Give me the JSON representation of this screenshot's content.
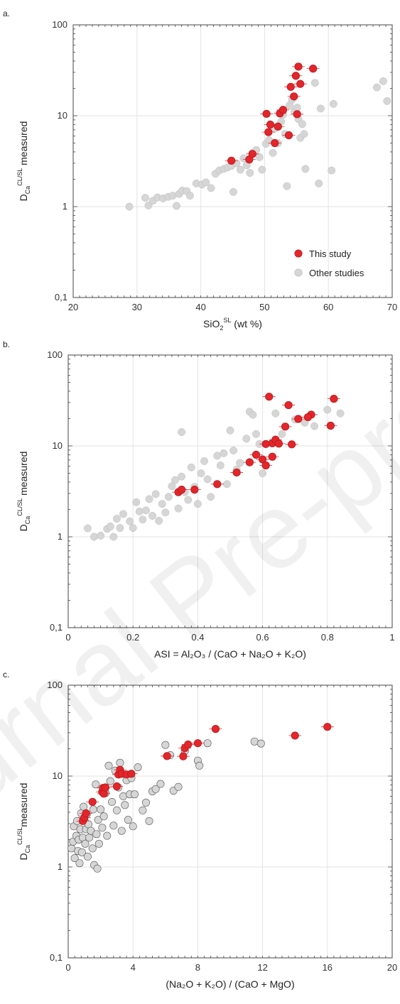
{
  "watermark": "Journal Pre-proof",
  "chart_data": [
    {
      "panel_label": "a.",
      "type": "scatter",
      "xlabel_main": "SiO",
      "xlabel_sub": "2",
      "xlabel_sup": "SL",
      "xlabel_tail": " (wt %)",
      "ylabel_main": "D",
      "ylabel_sub": "Ca",
      "ylabel_sup": "CL/SL",
      "ylabel_tail": " measured",
      "xlim": [
        20,
        70
      ],
      "ylim": [
        0.1,
        100
      ],
      "yscale": "log",
      "xticks": [
        20,
        30,
        40,
        50,
        60,
        70
      ],
      "xtick_labels": [
        "20",
        "30",
        "40",
        "50",
        "60",
        "70"
      ],
      "yticks": [
        0.1,
        1,
        10,
        100
      ],
      "ytick_labels": [
        "0,1",
        "1",
        "10",
        "100"
      ],
      "legend": [
        "This study",
        "Other studies"
      ],
      "series": [
        {
          "name": "Other studies",
          "color": "#d6d6d6",
          "points": [
            [
              28.8,
              1.0
            ],
            [
              31.3,
              1.25
            ],
            [
              31.8,
              1.03
            ],
            [
              32.5,
              1.16
            ],
            [
              33.2,
              1.26
            ],
            [
              34.1,
              1.23
            ],
            [
              34.9,
              1.28
            ],
            [
              35.6,
              1.32
            ],
            [
              36.2,
              1.02
            ],
            [
              36.6,
              1.38
            ],
            [
              37.1,
              1.5
            ],
            [
              37.8,
              1.48
            ],
            [
              38.3,
              1.32
            ],
            [
              39.3,
              1.8
            ],
            [
              40.2,
              1.75
            ],
            [
              40.8,
              1.85
            ],
            [
              41.6,
              1.6
            ],
            [
              42.3,
              2.3
            ],
            [
              42.9,
              2.5
            ],
            [
              43.6,
              2.6
            ],
            [
              44.2,
              2.7
            ],
            [
              44.8,
              2.8
            ],
            [
              45.1,
              1.45
            ],
            [
              45.6,
              3.0
            ],
            [
              46.2,
              2.55
            ],
            [
              46.7,
              3.4
            ],
            [
              47.2,
              2.85
            ],
            [
              47.7,
              2.35
            ],
            [
              48.1,
              3.9
            ],
            [
              48.7,
              4.2
            ],
            [
              49.2,
              3.5
            ],
            [
              49.6,
              2.55
            ],
            [
              50.2,
              4.9
            ],
            [
              50.7,
              5.4
            ],
            [
              51.3,
              3.9
            ],
            [
              51.6,
              7.2
            ],
            [
              52.1,
              5.0
            ],
            [
              52.6,
              8.6
            ],
            [
              52.9,
              10.3
            ],
            [
              53.2,
              6.3
            ],
            [
              53.5,
              1.68
            ],
            [
              53.9,
              13.0
            ],
            [
              54.3,
              15.0
            ],
            [
              54.7,
              11.2
            ],
            [
              55.1,
              12.3
            ],
            [
              55.3,
              9.2
            ],
            [
              55.6,
              5.7
            ],
            [
              55.9,
              8.1
            ],
            [
              56.2,
              6.3
            ],
            [
              56.4,
              2.6
            ],
            [
              57.9,
              23.0
            ],
            [
              58.5,
              1.8
            ],
            [
              58.8,
              12.0
            ],
            [
              60.5,
              2.5
            ],
            [
              60.8,
              13.5
            ],
            [
              67.6,
              20.5
            ],
            [
              68.6,
              24.0
            ],
            [
              69.2,
              14.5
            ]
          ]
        },
        {
          "name": "This study",
          "color": "#e3262b",
          "points": [
            [
              44.8,
              3.2
            ],
            [
              47.6,
              3.3
            ],
            [
              48.1,
              3.8
            ],
            [
              50.3,
              10.5
            ],
            [
              50.6,
              6.6
            ],
            [
              50.9,
              8.0
            ],
            [
              51.6,
              5.0
            ],
            [
              52.1,
              7.6
            ],
            [
              52.4,
              10.6
            ],
            [
              52.9,
              11.6
            ],
            [
              53.8,
              6.1
            ],
            [
              54.1,
              20.8
            ],
            [
              54.6,
              16.3
            ],
            [
              54.9,
              27.5
            ],
            [
              55.1,
              10.4
            ],
            [
              55.3,
              34.7
            ],
            [
              55.6,
              22.4
            ],
            [
              57.6,
              33.0
            ]
          ]
        }
      ]
    },
    {
      "panel_label": "b.",
      "type": "scatter",
      "xlabel_main": "ASI = Al₂O₃ / (CaO + Na₂O + K₂O)",
      "xlabel_sub": "",
      "xlabel_sup": "",
      "xlabel_tail": "",
      "ylabel_main": "D",
      "ylabel_sub": "Ca",
      "ylabel_sup": "CL/SL",
      "ylabel_tail": " measured",
      "xlim": [
        0,
        1
      ],
      "ylim": [
        0.1,
        100
      ],
      "yscale": "log",
      "xticks": [
        0,
        0.2,
        0.4,
        0.6,
        0.8,
        1
      ],
      "xtick_labels": [
        "0",
        "0.2",
        "0.4",
        "0.6",
        "0.8",
        "1"
      ],
      "yticks": [
        0.1,
        1,
        10,
        100
      ],
      "ytick_labels": [
        "0,1",
        "1",
        "10",
        "100"
      ],
      "legend": [],
      "series": [
        {
          "name": "Other studies",
          "color": "#d6d6d6",
          "points": [
            [
              0.06,
              1.24
            ],
            [
              0.08,
              1.0
            ],
            [
              0.1,
              1.03
            ],
            [
              0.12,
              1.22
            ],
            [
              0.13,
              1.3
            ],
            [
              0.14,
              1.0
            ],
            [
              0.15,
              1.58
            ],
            [
              0.16,
              1.25
            ],
            [
              0.17,
              1.78
            ],
            [
              0.19,
              1.48
            ],
            [
              0.2,
              1.25
            ],
            [
              0.21,
              2.4
            ],
            [
              0.22,
              1.9
            ],
            [
              0.23,
              1.55
            ],
            [
              0.24,
              1.95
            ],
            [
              0.25,
              2.6
            ],
            [
              0.26,
              1.7
            ],
            [
              0.27,
              2.95
            ],
            [
              0.28,
              1.5
            ],
            [
              0.29,
              2.3
            ],
            [
              0.3,
              1.85
            ],
            [
              0.31,
              2.75
            ],
            [
              0.32,
              3.6
            ],
            [
              0.33,
              4.2
            ],
            [
              0.34,
              2.05
            ],
            [
              0.35,
              4.6
            ],
            [
              0.35,
              14.2
            ],
            [
              0.36,
              3.1
            ],
            [
              0.37,
              2.55
            ],
            [
              0.38,
              5.8
            ],
            [
              0.39,
              3.55
            ],
            [
              0.4,
              2.3
            ],
            [
              0.41,
              5.0
            ],
            [
              0.42,
              6.8
            ],
            [
              0.43,
              4.3
            ],
            [
              0.44,
              2.75
            ],
            [
              0.46,
              7.8
            ],
            [
              0.47,
              6.1
            ],
            [
              0.48,
              8.3
            ],
            [
              0.49,
              3.8
            ],
            [
              0.5,
              14.8
            ],
            [
              0.51,
              8.9
            ],
            [
              0.52,
              5.5
            ],
            [
              0.53,
              6.5
            ],
            [
              0.55,
              12.0
            ],
            [
              0.56,
              23.8
            ],
            [
              0.57,
              22.0
            ],
            [
              0.58,
              13.5
            ],
            [
              0.59,
              10.5
            ],
            [
              0.6,
              5.0
            ],
            [
              0.64,
              22.8
            ],
            [
              0.66,
              13.5
            ],
            [
              0.7,
              19.5
            ],
            [
              0.73,
              18.0
            ],
            [
              0.76,
              16.5
            ],
            [
              0.8,
              25.0
            ],
            [
              0.84,
              22.8
            ]
          ]
        },
        {
          "name": "This study",
          "color": "#e3262b",
          "points": [
            [
              0.34,
              3.1
            ],
            [
              0.35,
              3.3
            ],
            [
              0.39,
              3.3
            ],
            [
              0.46,
              3.8
            ],
            [
              0.52,
              5.1
            ],
            [
              0.56,
              6.6
            ],
            [
              0.58,
              8.0
            ],
            [
              0.6,
              7.1
            ],
            [
              0.61,
              6.1
            ],
            [
              0.61,
              10.5
            ],
            [
              0.63,
              10.7
            ],
            [
              0.63,
              7.6
            ],
            [
              0.64,
              11.7
            ],
            [
              0.65,
              10.6
            ],
            [
              0.67,
              16.3
            ],
            [
              0.68,
              28.1
            ],
            [
              0.69,
              10.4
            ],
            [
              0.71,
              19.8
            ],
            [
              0.75,
              22.1
            ],
            [
              0.81,
              16.7
            ],
            [
              0.82,
              33.0
            ],
            [
              0.62,
              34.8
            ],
            [
              0.74,
              20.7
            ]
          ]
        }
      ]
    },
    {
      "panel_label": "c.",
      "type": "scatter",
      "xlabel_main": "(Na₂O + K₂O) / (CaO + MgO)",
      "xlabel_sub": "",
      "xlabel_sup": "",
      "xlabel_tail": "",
      "ylabel_main": "D",
      "ylabel_sub": "Ca",
      "ylabel_sup": "CL/SL",
      "ylabel_tail": "measured",
      "xlim": [
        0,
        20
      ],
      "ylim": [
        0.1,
        100
      ],
      "yscale": "log",
      "xticks": [
        0,
        4,
        8,
        12,
        16,
        20
      ],
      "xtick_labels": [
        "0",
        "4",
        "8",
        "12",
        "16",
        "20"
      ],
      "yticks": [
        0.1,
        1,
        10,
        100
      ],
      "ytick_labels": [
        "0,1",
        "1",
        "10",
        "100"
      ],
      "legend": [],
      "series": [
        {
          "name": "Other studies",
          "color": "#d6d6d6",
          "points": [
            [
              0.2,
              1.6
            ],
            [
              0.3,
              1.9
            ],
            [
              0.35,
              2.8
            ],
            [
              0.4,
              1.25
            ],
            [
              0.5,
              2.2
            ],
            [
              0.55,
              3.2
            ],
            [
              0.6,
              1.5
            ],
            [
              0.65,
              2.0
            ],
            [
              0.7,
              1.1
            ],
            [
              0.75,
              2.6
            ],
            [
              0.8,
              3.9
            ],
            [
              0.85,
              1.45
            ],
            [
              0.9,
              2.1
            ],
            [
              0.95,
              4.6
            ],
            [
              1.0,
              3.3
            ],
            [
              1.05,
              1.8
            ],
            [
              1.1,
              2.6
            ],
            [
              1.15,
              3.8
            ],
            [
              1.2,
              1.3
            ],
            [
              1.25,
              2.95
            ],
            [
              1.3,
              2.1
            ],
            [
              1.4,
              2.5
            ],
            [
              1.5,
              1.6
            ],
            [
              1.55,
              4.3
            ],
            [
              1.6,
              1.05
            ],
            [
              1.7,
              8.1
            ],
            [
              1.75,
              2.3
            ],
            [
              1.8,
              0.96
            ],
            [
              1.85,
              3.3
            ],
            [
              1.9,
              1.8
            ],
            [
              2.0,
              4.3
            ],
            [
              2.1,
              2.7
            ],
            [
              2.2,
              3.6
            ],
            [
              2.3,
              6.5
            ],
            [
              2.4,
              2.2
            ],
            [
              2.5,
              13.0
            ],
            [
              2.6,
              8.8
            ],
            [
              2.7,
              5.2
            ],
            [
              2.8,
              2.85
            ],
            [
              2.9,
              11.5
            ],
            [
              3.0,
              4.2
            ],
            [
              3.1,
              7.5
            ],
            [
              3.2,
              14.0
            ],
            [
              3.3,
              2.5
            ],
            [
              3.4,
              6.0
            ],
            [
              3.5,
              4.8
            ],
            [
              3.6,
              9.0
            ],
            [
              3.7,
              3.3
            ],
            [
              3.8,
              6.3
            ],
            [
              3.9,
              9.5
            ],
            [
              4.0,
              2.8
            ],
            [
              4.1,
              6.3
            ],
            [
              4.3,
              12.5
            ],
            [
              4.6,
              4.2
            ],
            [
              4.8,
              5.1
            ],
            [
              5.0,
              3.2
            ],
            [
              5.2,
              6.8
            ],
            [
              5.4,
              7.2
            ],
            [
              5.7,
              8.2
            ],
            [
              6.0,
              22.0
            ],
            [
              6.3,
              17.0
            ],
            [
              6.5,
              6.9
            ],
            [
              6.8,
              7.6
            ],
            [
              7.2,
              18.8
            ],
            [
              8.0,
              14.8
            ],
            [
              8.1,
              13.0
            ],
            [
              8.6,
              23.0
            ],
            [
              11.5,
              24.0
            ],
            [
              11.9,
              22.8
            ]
          ]
        },
        {
          "name": "This study",
          "color": "#e3262b",
          "points": [
            [
              0.9,
              3.2
            ],
            [
              1.0,
              3.5
            ],
            [
              1.1,
              3.9
            ],
            [
              1.5,
              5.2
            ],
            [
              2.1,
              6.7
            ],
            [
              2.15,
              7.4
            ],
            [
              2.2,
              6.4
            ],
            [
              2.3,
              7.5
            ],
            [
              3.0,
              7.7
            ],
            [
              3.1,
              10.4
            ],
            [
              3.2,
              11.7
            ],
            [
              3.3,
              10.6
            ],
            [
              3.6,
              10.4
            ],
            [
              3.9,
              10.6
            ],
            [
              6.1,
              16.6
            ],
            [
              7.1,
              16.5
            ],
            [
              7.2,
              20.3
            ],
            [
              7.4,
              22.3
            ],
            [
              8.0,
              23.0
            ],
            [
              9.1,
              33.0
            ],
            [
              14.0,
              27.9
            ],
            [
              16.0,
              34.8
            ]
          ]
        }
      ]
    }
  ]
}
